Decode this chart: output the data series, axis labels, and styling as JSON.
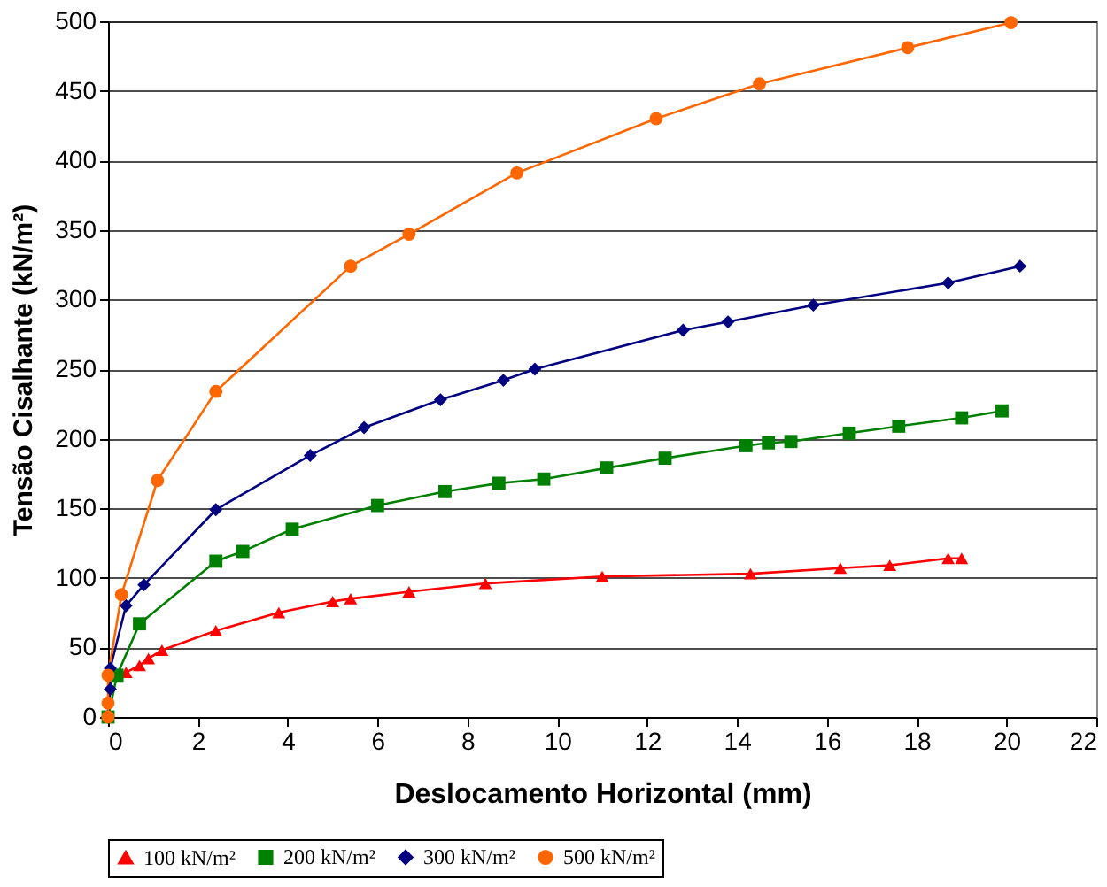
{
  "chart_data": {
    "type": "line",
    "xlabel": "Deslocamento Horizontal  (mm)",
    "ylabel": "Tensão Cisalhante  (kN/m²)",
    "xlim": [
      0,
      22
    ],
    "xticks": [
      0,
      2,
      4,
      6,
      8,
      10,
      12,
      14,
      16,
      18,
      20,
      22
    ],
    "ylim": [
      0,
      500
    ],
    "yticks": [
      0,
      50,
      100,
      150,
      200,
      250,
      300,
      350,
      400,
      450,
      500
    ],
    "grid": "y",
    "legend": "bottom",
    "series": [
      {
        "name": "100 kN/m²",
        "color": "#ff0000",
        "marker": "triangle",
        "x": [
          0.4,
          0.7,
          0.9,
          1.2,
          2.4,
          3.8,
          5.0,
          5.4,
          6.7,
          8.4,
          11,
          14.3,
          16.3,
          17.4,
          18.7,
          19.0
        ],
        "values": [
          32,
          37,
          42,
          48,
          62,
          75,
          83,
          85,
          90,
          96,
          101,
          103,
          107,
          109,
          114,
          114
        ]
      },
      {
        "name": "200 kN/m²",
        "color": "#008000",
        "marker": "square",
        "x": [
          0,
          0.2,
          0.7,
          2.4,
          3.0,
          4.1,
          6.0,
          7.5,
          8.7,
          9.7,
          11.1,
          12.4,
          14.2,
          14.7,
          15.2,
          16.5,
          17.6,
          19.0,
          19.9
        ],
        "values": [
          0,
          30,
          67,
          112,
          119,
          135,
          152,
          162,
          168,
          171,
          179,
          186,
          195,
          197,
          198,
          204,
          209,
          215,
          220
        ]
      },
      {
        "name": "300 kN/m²",
        "color": "#000080",
        "marker": "diamond",
        "x": [
          0,
          0.05,
          0.05,
          0.4,
          0.8,
          2.4,
          4.5,
          5.7,
          7.4,
          8.8,
          9.5,
          12.8,
          13.8,
          15.7,
          18.7,
          20.3
        ],
        "values": [
          0,
          20,
          35,
          80,
          95,
          149,
          188,
          208,
          228,
          242,
          250,
          278,
          284,
          296,
          312,
          324
        ]
      },
      {
        "name": "500 kN/m²",
        "color": "#ff6600",
        "marker": "circle",
        "x": [
          0,
          0,
          0,
          0.3,
          1.1,
          2.4,
          5.4,
          6.7,
          9.1,
          12.2,
          14.5,
          17.8,
          20.1
        ],
        "values": [
          0,
          10,
          30,
          88,
          170,
          234,
          324,
          347,
          391,
          430,
          455,
          481,
          499
        ]
      }
    ]
  }
}
